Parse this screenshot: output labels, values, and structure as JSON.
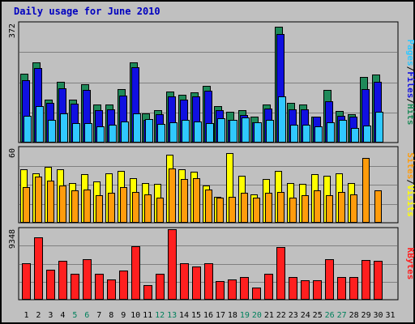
{
  "chart_data": {
    "type": "bar",
    "title": "Daily usage for June 2010",
    "categories": [
      "1",
      "2",
      "3",
      "4",
      "5",
      "6",
      "7",
      "8",
      "9",
      "10",
      "11",
      "12",
      "13",
      "14",
      "15",
      "16",
      "17",
      "18",
      "19",
      "20",
      "21",
      "22",
      "23",
      "24",
      "25",
      "26",
      "27",
      "28",
      "29",
      "30",
      "31"
    ],
    "weekend_days": [
      "5",
      "6",
      "12",
      "13",
      "19",
      "20",
      "26",
      "27"
    ],
    "panels": [
      {
        "id": "top",
        "y_max_label": "372",
        "ylim": [
          0,
          372
        ],
        "side_labels": [
          "Pages",
          "Files",
          "Hits"
        ],
        "series": [
          {
            "name": "Hits",
            "color": "#1f8a5a",
            "values": [
              215,
              251,
              134,
              191,
              134,
              182,
              118,
              120,
              168,
              250,
              91,
              100,
              159,
              150,
              157,
              177,
              113,
              97,
              102,
              80,
              118,
              362,
              125,
              120,
              82,
              165,
              98,
              88,
              204,
              213,
              0
            ]
          },
          {
            "name": "Files",
            "color": "#1010e0",
            "values": [
              195,
              234,
              124,
              170,
              121,
              164,
              102,
              104,
              148,
              236,
              71,
              89,
              143,
              135,
              145,
              163,
              100,
              72,
              85,
              64,
              106,
              340,
              104,
              103,
              80,
              128,
              83,
              82,
              167,
              189,
              0
            ]
          },
          {
            "name": "Pages",
            "color": "#30c8ff",
            "values": [
              84,
              115,
              70,
              92,
              60,
              61,
              50,
              56,
              67,
              90,
              74,
              58,
              62,
              71,
              65,
              61,
              75,
              70,
              79,
              62,
              70,
              143,
              56,
              56,
              50,
              64,
              71,
              45,
              53,
              96,
              0
            ]
          }
        ]
      },
      {
        "id": "middle",
        "y_max_label": "60",
        "ylim": [
          0,
          60
        ],
        "side_labels": [
          "Sites",
          "Visits"
        ],
        "series": [
          {
            "name": "Visits",
            "color": "#ffff00",
            "values": [
              43,
              40,
              45,
              43,
              32,
              39,
              33,
              40,
              42,
              36,
              32,
              31,
              55,
              43,
              41,
              30,
              21,
              56,
              38,
              23,
              35,
              42,
              32,
              31,
              39,
              38,
              40,
              32,
              0,
              0,
              0
            ]
          },
          {
            "name": "Sites",
            "color": "#ff9c0c",
            "values": [
              29,
              37,
              34,
              30,
              26,
              27,
              22,
              24,
              29,
              25,
              23,
              20,
              44,
              35,
              36,
              27,
              20,
              21,
              24,
              20,
              24,
              25,
              20,
              22,
              26,
              22,
              25,
              23,
              52,
              26,
              0
            ]
          }
        ]
      },
      {
        "id": "bottom",
        "y_max_label": "9348",
        "ylim": [
          0,
          9348
        ],
        "side_labels": [
          "KBytes"
        ],
        "series": [
          {
            "name": "KBytes",
            "color": "#ff1f1f",
            "values": [
              4785,
              8286,
              3931,
              5151,
              3402,
              5412,
              3402,
              2707,
              3843,
              7041,
              1946,
              3402,
              9348,
              4785,
              4425,
              4785,
              2446,
              2707,
              3010,
              1663,
              3492,
              6931,
              3010,
              2531,
              2531,
              5412,
              3010,
              2969,
              5260,
              5151,
              0
            ]
          }
        ]
      }
    ],
    "colors": {
      "grid": "#808080",
      "outline": "#000000",
      "weekday_label": "#000000",
      "weekend_label": "#00805c",
      "title": "#0000c0"
    }
  }
}
